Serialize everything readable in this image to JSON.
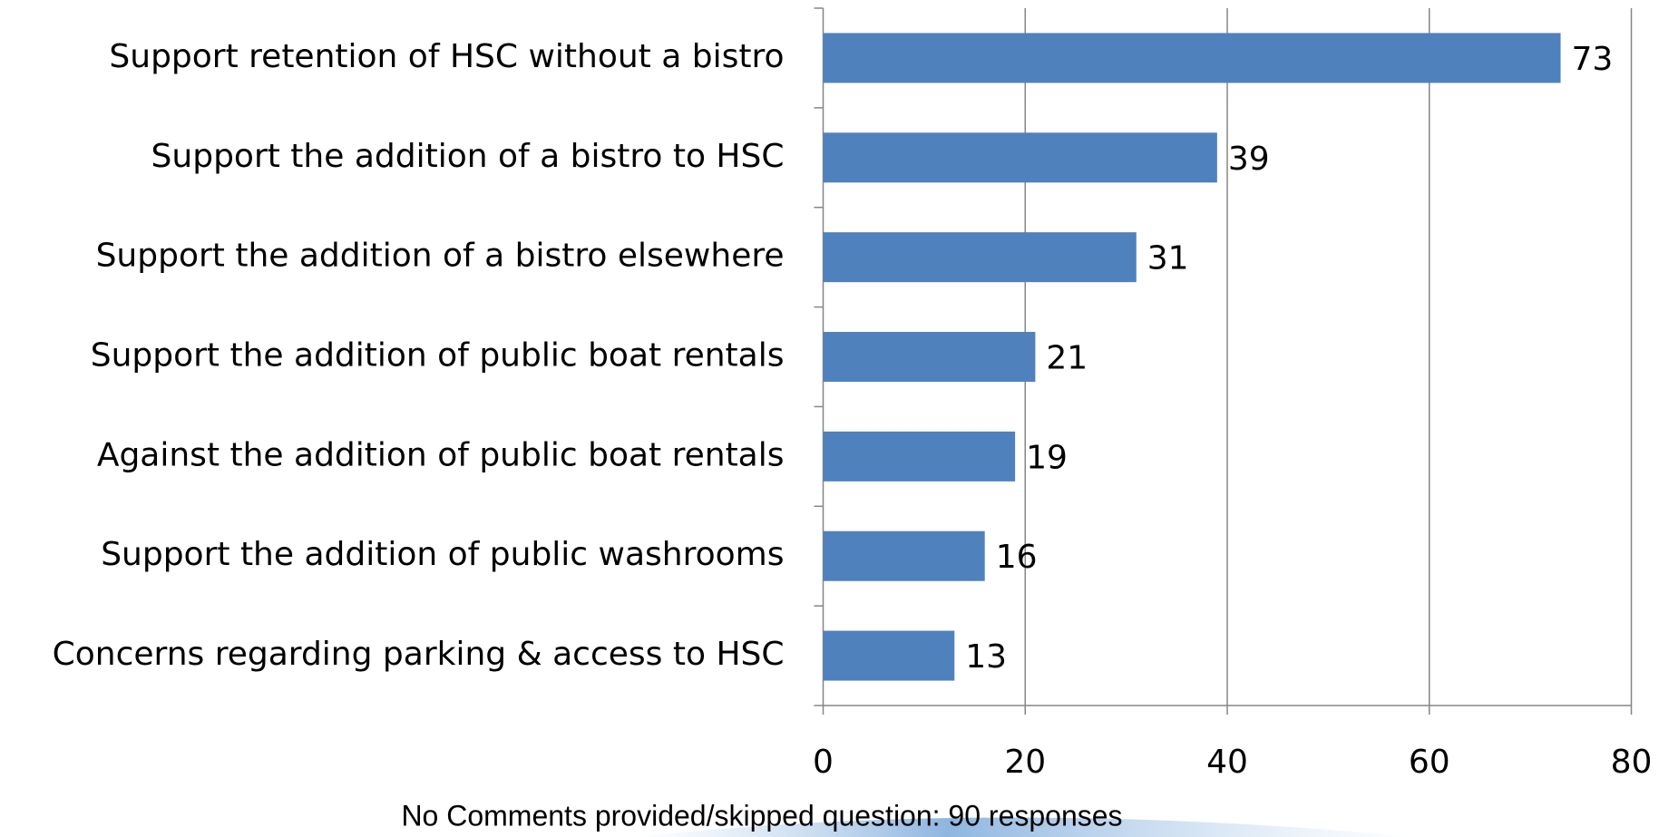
{
  "chart_data": {
    "type": "bar",
    "orientation": "horizontal",
    "note": "No Comments provided/skipped question: 90 responses",
    "categories": [
      "Support retention of HSC without a bistro",
      "Support the addition of a bistro to HSC",
      "Support the addition of a bistro elsewhere",
      "Support the addition of public boat rentals",
      "Against the addition of public boat rentals",
      "Support the addition of public washrooms",
      "Concerns regarding parking & access to HSC"
    ],
    "values": [
      73,
      39,
      31,
      21,
      19,
      16,
      13
    ],
    "color": "#4f81bd",
    "xlim": [
      0,
      80
    ],
    "xticks": [
      0,
      20,
      40,
      60,
      80
    ],
    "grid": true
  }
}
